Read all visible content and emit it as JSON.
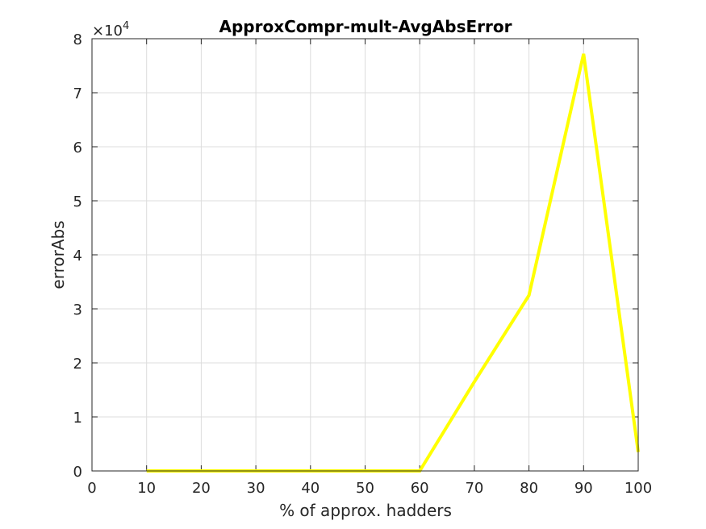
{
  "chart_data": {
    "type": "line",
    "title": "ApproxCompr-mult-AvgAbsError",
    "xlabel": "% of approx. hadders",
    "ylabel": "errorAbs",
    "xlim": [
      0,
      100
    ],
    "ylim": [
      0,
      8
    ],
    "y_exponent": "×10",
    "y_exponent_power": "4",
    "x_ticks": [
      "0",
      "10",
      "20",
      "30",
      "40",
      "50",
      "60",
      "70",
      "80",
      "90",
      "100"
    ],
    "y_ticks": [
      "0",
      "1",
      "2",
      "3",
      "4",
      "5",
      "6",
      "7",
      "8"
    ],
    "grid": true,
    "series": [
      {
        "color": "#ffff00",
        "x": [
          10,
          20,
          30,
          40,
          50,
          60,
          70,
          80,
          90,
          100
        ],
        "y": [
          0,
          0,
          0,
          0,
          0,
          0,
          1.65,
          3.25,
          7.72,
          0.35
        ]
      }
    ]
  }
}
